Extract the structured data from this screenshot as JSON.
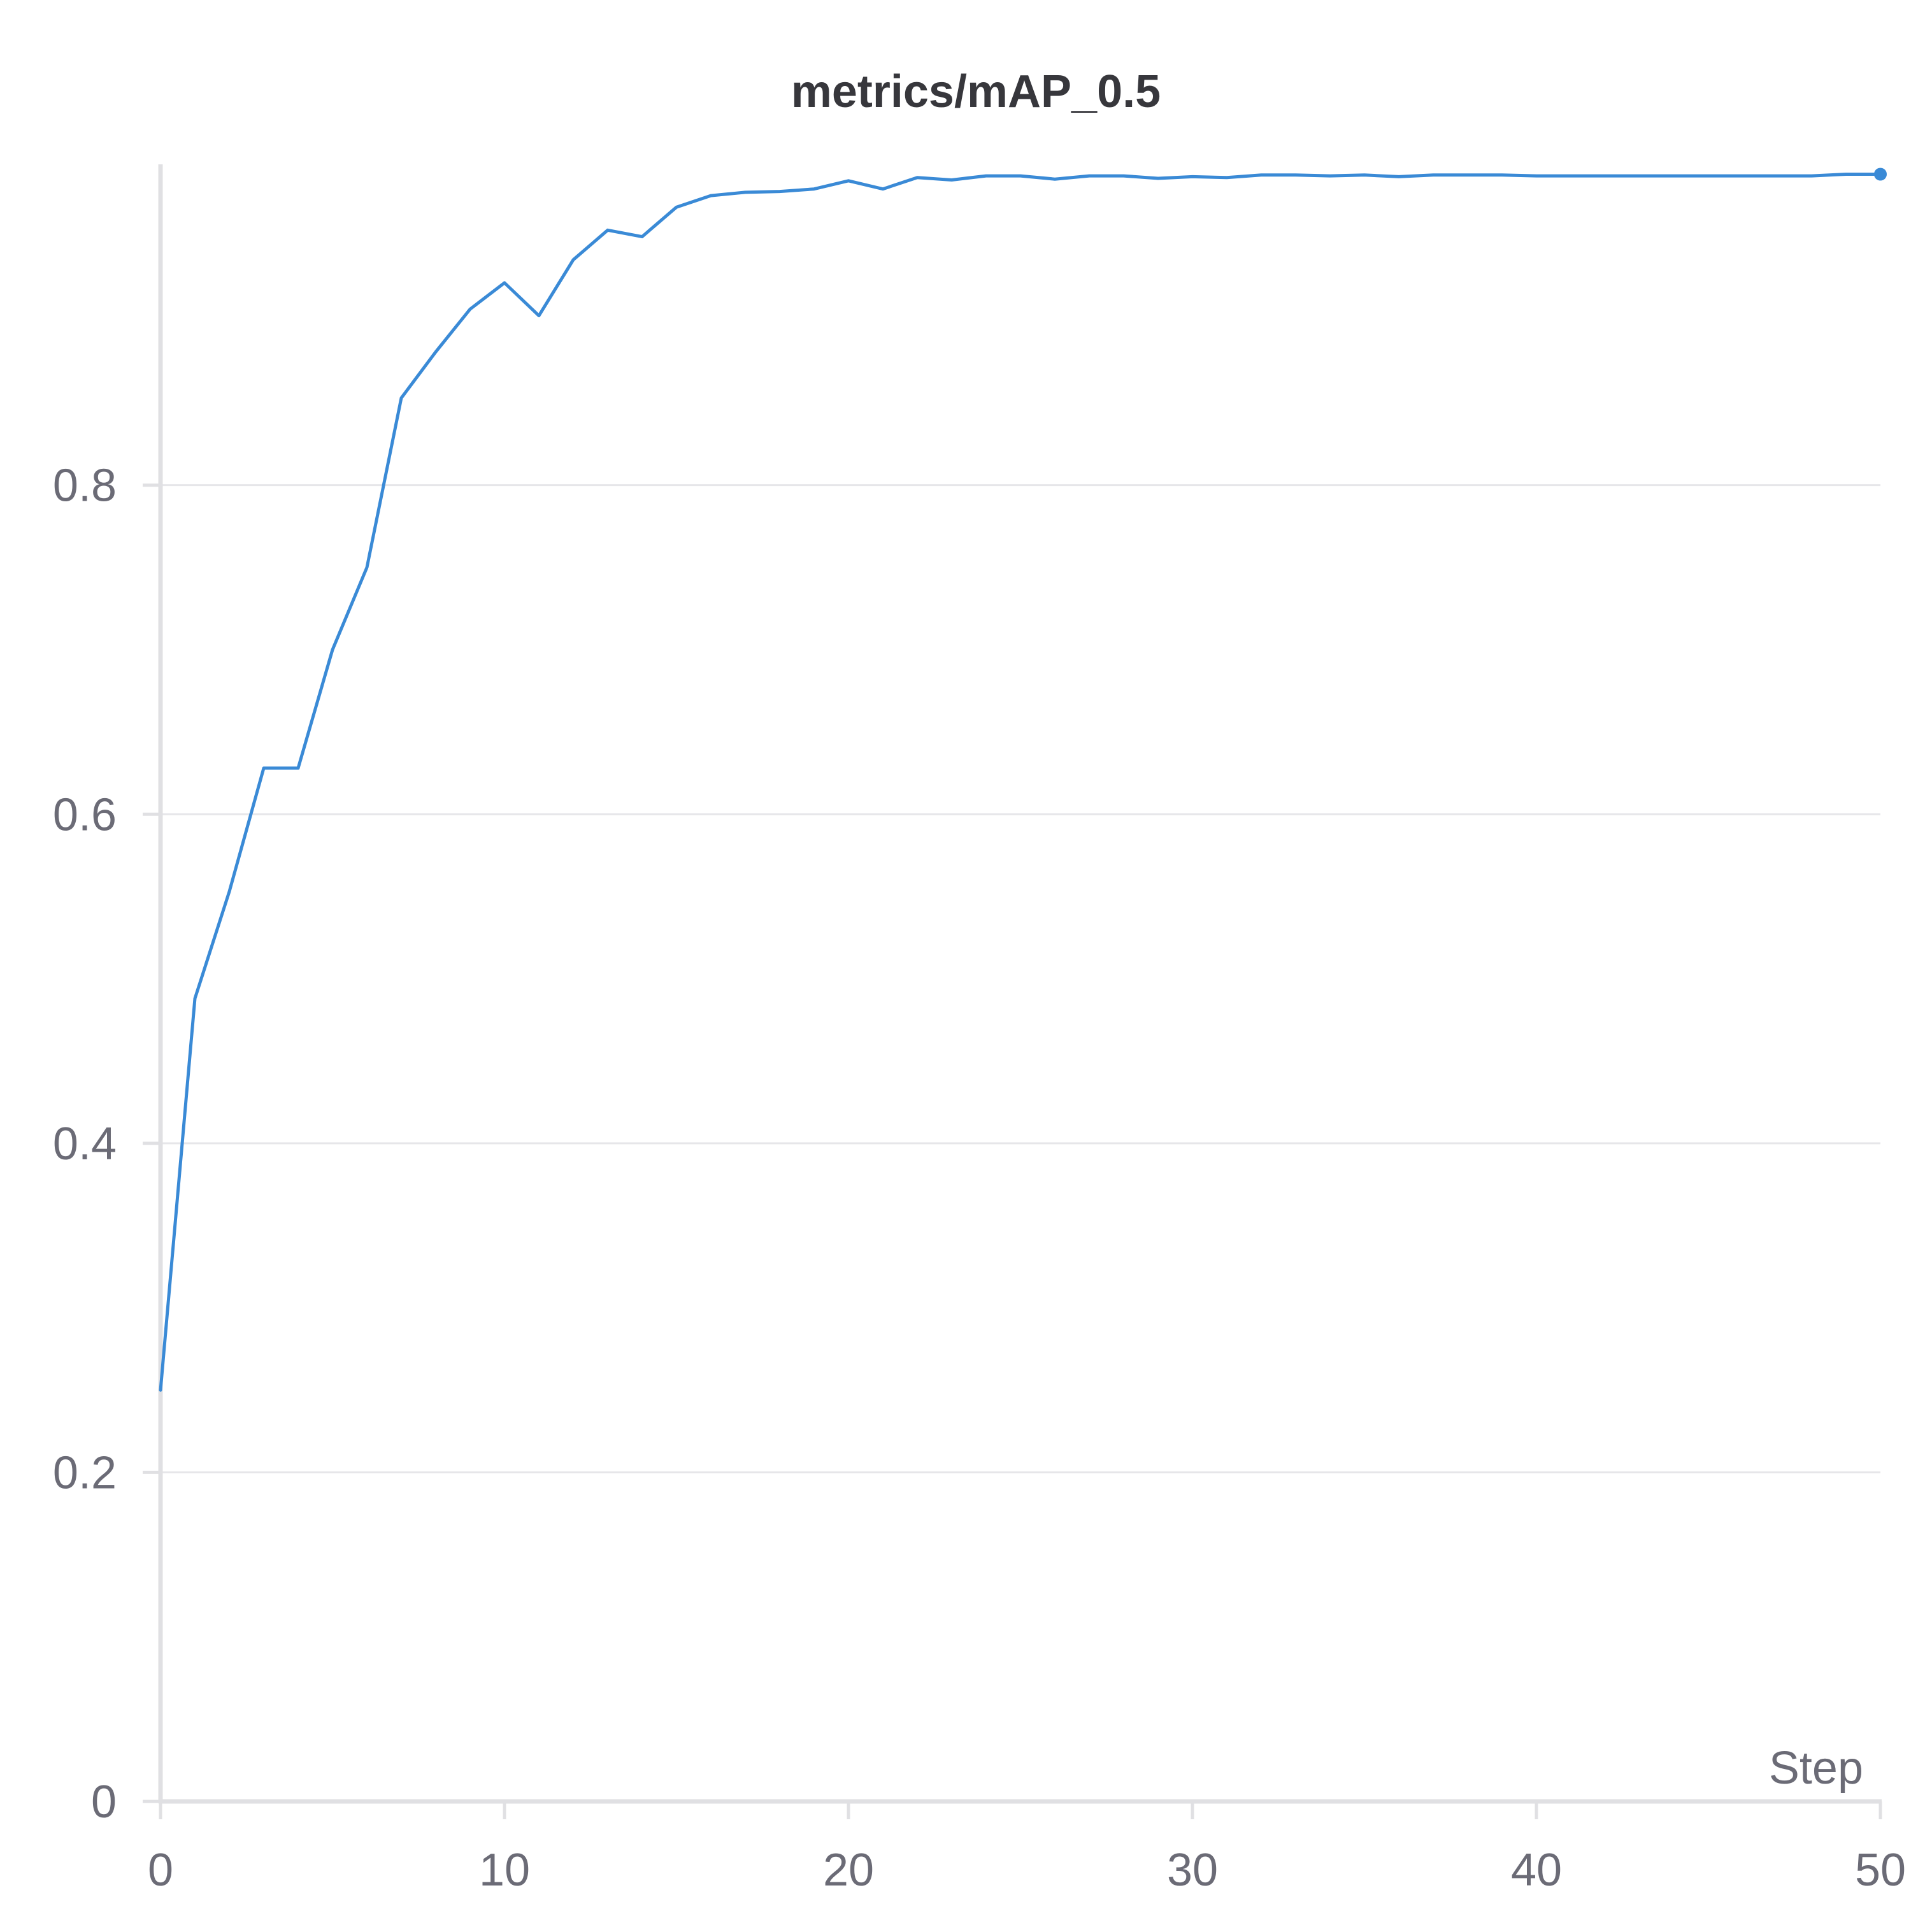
{
  "chart_data": {
    "type": "line",
    "title": "metrics/mAP_0.5",
    "xlabel": "Step",
    "ylabel": "",
    "xlim": [
      0,
      50
    ],
    "ylim": [
      0,
      0.995
    ],
    "x_ticks": [
      "0",
      "10",
      "20",
      "30",
      "40",
      "50"
    ],
    "y_ticks": [
      "0",
      "0.2",
      "0.4",
      "0.6",
      "0.8"
    ],
    "grid": true,
    "series": [
      {
        "color": "#3a8ad6",
        "x": [
          0,
          1,
          2,
          3,
          4,
          5,
          6,
          7,
          8,
          9,
          10,
          11,
          12,
          13,
          14,
          15,
          16,
          17,
          18,
          19,
          20,
          21,
          22,
          23,
          24,
          25,
          26,
          27,
          28,
          29,
          30,
          31,
          32,
          33,
          34,
          35,
          36,
          37,
          38,
          39,
          40,
          41,
          42,
          43,
          44,
          45,
          46,
          47,
          48,
          49,
          50
        ],
        "values": [
          0.25,
          0.488,
          0.553,
          0.628,
          0.628,
          0.7,
          0.75,
          0.853,
          0.881,
          0.907,
          0.923,
          0.903,
          0.937,
          0.955,
          0.951,
          0.969,
          0.976,
          0.978,
          0.9785,
          0.98,
          0.985,
          0.98,
          0.987,
          0.9855,
          0.988,
          0.988,
          0.986,
          0.988,
          0.988,
          0.9865,
          0.9875,
          0.987,
          0.9885,
          0.9885,
          0.988,
          0.9885,
          0.9875,
          0.9885,
          0.9885,
          0.9885,
          0.988,
          0.988,
          0.988,
          0.988,
          0.988,
          0.988,
          0.988,
          0.988,
          0.988,
          0.989,
          0.989
        ]
      }
    ]
  }
}
